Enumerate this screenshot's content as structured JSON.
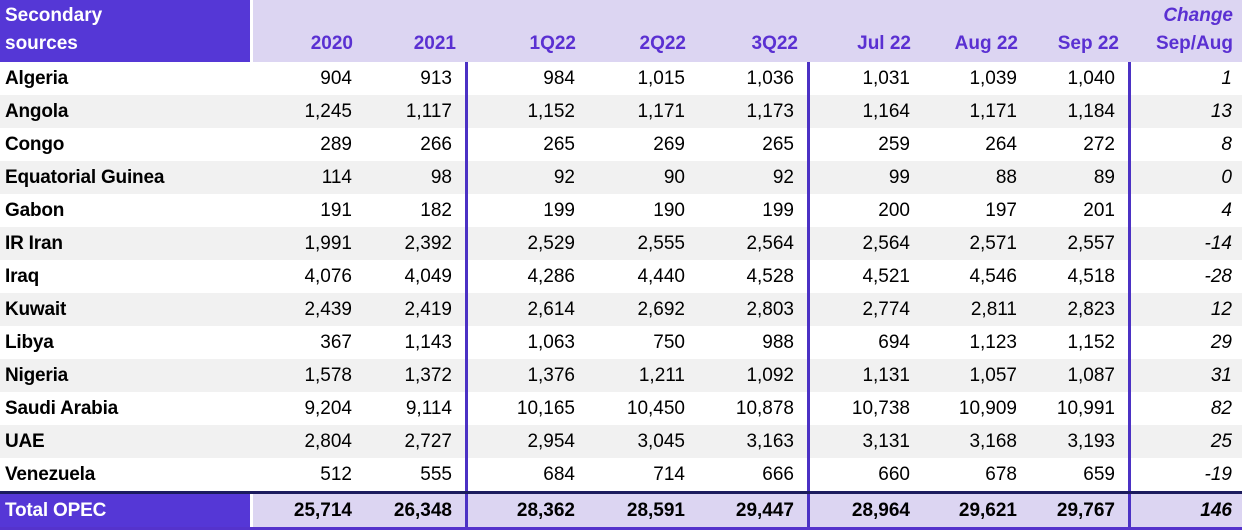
{
  "table": {
    "title_line1": "Secondary",
    "title_line2": "sources",
    "columns": [
      "2020",
      "2021",
      "1Q22",
      "2Q22",
      "3Q22",
      "Jul 22",
      "Aug 22",
      "Sep 22"
    ],
    "change_header_line1": "Change",
    "change_header_line2": "Sep/Aug",
    "rows": [
      {
        "name": "Algeria",
        "values": [
          "904",
          "913",
          "984",
          "1,015",
          "1,036",
          "1,031",
          "1,039",
          "1,040"
        ],
        "change": "1"
      },
      {
        "name": "Angola",
        "values": [
          "1,245",
          "1,117",
          "1,152",
          "1,171",
          "1,173",
          "1,164",
          "1,171",
          "1,184"
        ],
        "change": "13"
      },
      {
        "name": "Congo",
        "values": [
          "289",
          "266",
          "265",
          "269",
          "265",
          "259",
          "264",
          "272"
        ],
        "change": "8"
      },
      {
        "name": "Equatorial Guinea",
        "values": [
          "114",
          "98",
          "92",
          "90",
          "92",
          "99",
          "88",
          "89"
        ],
        "change": "0"
      },
      {
        "name": "Gabon",
        "values": [
          "191",
          "182",
          "199",
          "190",
          "199",
          "200",
          "197",
          "201"
        ],
        "change": "4"
      },
      {
        "name": "IR Iran",
        "values": [
          "1,991",
          "2,392",
          "2,529",
          "2,555",
          "2,564",
          "2,564",
          "2,571",
          "2,557"
        ],
        "change": "-14"
      },
      {
        "name": "Iraq",
        "values": [
          "4,076",
          "4,049",
          "4,286",
          "4,440",
          "4,528",
          "4,521",
          "4,546",
          "4,518"
        ],
        "change": "-28"
      },
      {
        "name": "Kuwait",
        "values": [
          "2,439",
          "2,419",
          "2,614",
          "2,692",
          "2,803",
          "2,774",
          "2,811",
          "2,823"
        ],
        "change": "12"
      },
      {
        "name": "Libya",
        "values": [
          "367",
          "1,143",
          "1,063",
          "750",
          "988",
          "694",
          "1,123",
          "1,152"
        ],
        "change": "29"
      },
      {
        "name": "Nigeria",
        "values": [
          "1,578",
          "1,372",
          "1,376",
          "1,211",
          "1,092",
          "1,131",
          "1,057",
          "1,087"
        ],
        "change": "31"
      },
      {
        "name": "Saudi Arabia",
        "values": [
          "9,204",
          "9,114",
          "10,165",
          "10,450",
          "10,878",
          "10,738",
          "10,909",
          "10,991"
        ],
        "change": "82"
      },
      {
        "name": "UAE",
        "values": [
          "2,804",
          "2,727",
          "2,954",
          "3,045",
          "3,163",
          "3,131",
          "3,168",
          "3,193"
        ],
        "change": "25"
      },
      {
        "name": "Venezuela",
        "values": [
          "512",
          "555",
          "684",
          "714",
          "666",
          "660",
          "678",
          "659"
        ],
        "change": "-19"
      }
    ],
    "total": {
      "name": "Total OPEC",
      "values": [
        "25,714",
        "26,348",
        "28,362",
        "28,591",
        "29,447",
        "28,964",
        "29,621",
        "29,767"
      ],
      "change": "146"
    }
  },
  "colors": {
    "purple": "#5537d6",
    "lavender": "#dcd5f2",
    "header-text": "#5a30d2",
    "divider": "#4b31c4",
    "stripe": "#f1f1f1",
    "navy": "#1b1b5e",
    "bottom-line": "#5533cc"
  }
}
